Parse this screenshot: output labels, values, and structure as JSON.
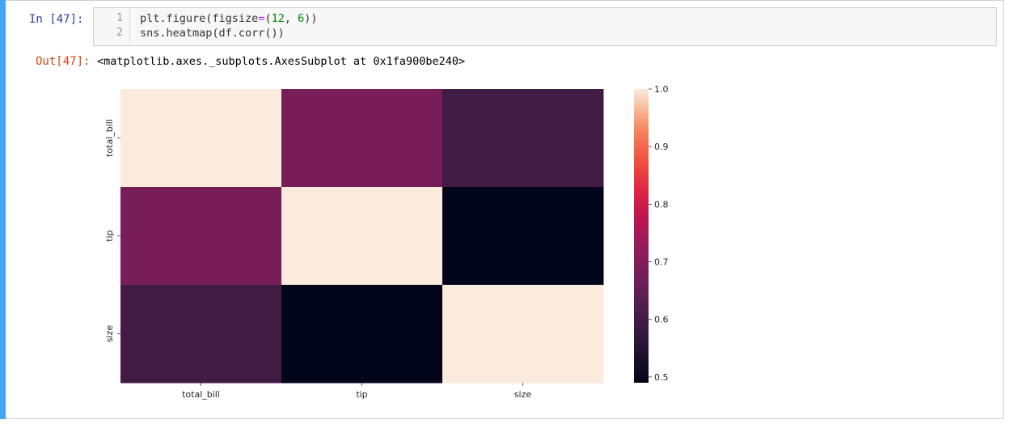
{
  "input_cell": {
    "prompt": "In [47]:",
    "line_numbers": [
      "1",
      "2"
    ],
    "line1": {
      "a": "plt.figure(figsize",
      "op": "=",
      "b": "(",
      "n1": "12",
      "c": ", ",
      "n2": "6",
      "d": "))"
    },
    "line2": "sns.heatmap(df.corr())"
  },
  "output_cell": {
    "prompt": "Out[47]:",
    "text": "<matplotlib.axes._subplots.AxesSubplot at 0x1fa900be240>"
  },
  "colors": {
    "cell_bar": "#42a5f5",
    "in_prompt": "#303f9f",
    "out_prompt": "#d84315"
  },
  "chart_data": {
    "type": "heatmap",
    "colormap": "rocket",
    "x_labels": [
      "total_bill",
      "tip",
      "size"
    ],
    "y_labels": [
      "total_bill",
      "tip",
      "size"
    ],
    "values": [
      [
        1.0,
        0.68,
        0.6
      ],
      [
        0.68,
        1.0,
        0.49
      ],
      [
        0.6,
        0.49,
        1.0
      ]
    ],
    "colorbar": {
      "min": 0.49,
      "max": 1.0,
      "ticks": [
        "1.0",
        "0.9",
        "0.8",
        "0.7",
        "0.6",
        "0.5"
      ],
      "tick_values": [
        1.0,
        0.9,
        0.8,
        0.7,
        0.6,
        0.5
      ]
    },
    "title": "",
    "xlabel": "",
    "ylabel": ""
  }
}
